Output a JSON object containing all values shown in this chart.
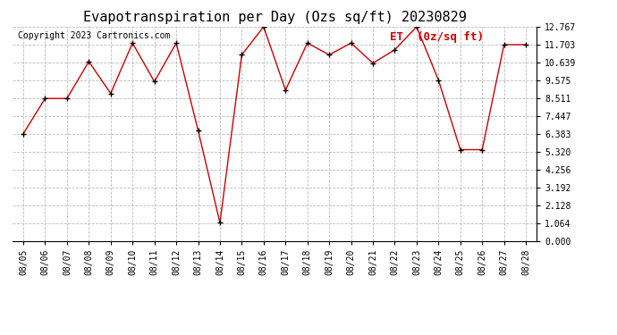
{
  "title": "Evapotranspiration per Day (Ozs sq/ft) 20230829",
  "copyright": "Copyright 2023 Cartronics.com",
  "legend_label": "ET  (0z/sq ft)",
  "dates": [
    "08/05",
    "08/06",
    "08/07",
    "08/08",
    "08/09",
    "08/10",
    "08/11",
    "08/12",
    "08/13",
    "08/14",
    "08/15",
    "08/16",
    "08/17",
    "08/18",
    "08/19",
    "08/20",
    "08/21",
    "08/22",
    "08/23",
    "08/24",
    "08/25",
    "08/26",
    "08/27",
    "08/28"
  ],
  "values": [
    6.4,
    8.5,
    8.5,
    10.7,
    8.8,
    11.8,
    9.5,
    11.8,
    6.6,
    1.1,
    11.1,
    12.767,
    9.0,
    11.8,
    11.1,
    11.8,
    10.6,
    11.4,
    12.767,
    9.6,
    5.45,
    5.45,
    11.703,
    11.703
  ],
  "line_color": "#cc0000",
  "marker_color": "#000000",
  "background_color": "#ffffff",
  "grid_color": "#bbbbbb",
  "yticks": [
    0.0,
    1.064,
    2.128,
    3.192,
    4.256,
    5.32,
    6.383,
    7.447,
    8.511,
    9.575,
    10.639,
    11.703,
    12.767
  ],
  "ylim": [
    0.0,
    12.767
  ],
  "title_fontsize": 11,
  "copyright_fontsize": 7,
  "legend_fontsize": 9,
  "tick_fontsize": 7
}
